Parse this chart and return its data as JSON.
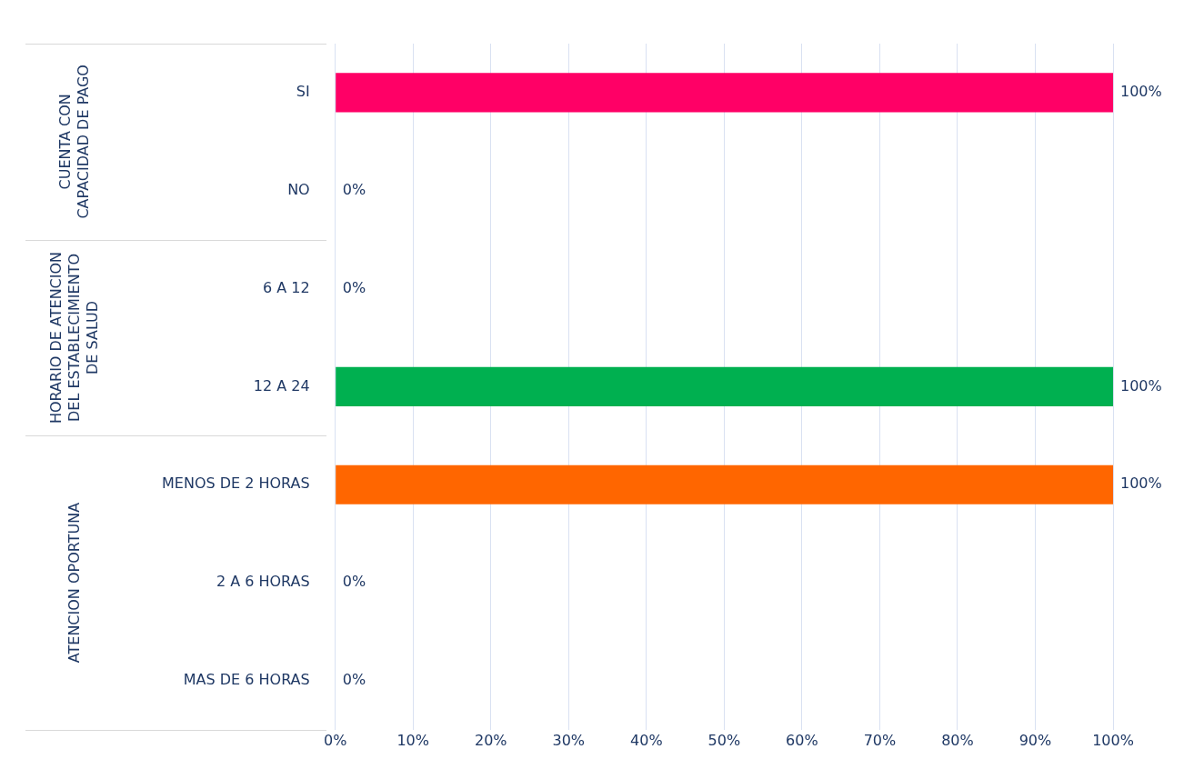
{
  "chart_data": {
    "type": "bar",
    "orientation": "horizontal",
    "categories": [
      "SI",
      "NO",
      "6 A 12",
      "12 A 24",
      "MENOS DE 2 HORAS",
      "2 A 6 HORAS",
      "MAS DE 6 HORAS"
    ],
    "values": [
      100,
      0,
      0,
      100,
      100,
      0,
      0
    ],
    "colors": [
      "#ff0066",
      "#ff0066",
      "#00b050",
      "#00b050",
      "#ff6600",
      "#ff6600",
      "#ff6600"
    ],
    "value_labels": [
      "100%",
      "0%",
      "0%",
      "100%",
      "100%",
      "0%",
      "0%"
    ],
    "xlim": [
      0,
      100
    ],
    "xticks": [
      {
        "value": 0,
        "label": "0%"
      },
      {
        "value": 10,
        "label": "10%"
      },
      {
        "value": 20,
        "label": "20%"
      },
      {
        "value": 30,
        "label": "30%"
      },
      {
        "value": 40,
        "label": "40%"
      },
      {
        "value": 50,
        "label": "50%"
      },
      {
        "value": 60,
        "label": "60%"
      },
      {
        "value": 70,
        "label": "70%"
      },
      {
        "value": 80,
        "label": "80%"
      },
      {
        "value": 90,
        "label": "90%"
      },
      {
        "value": 100,
        "label": "100%"
      }
    ],
    "annotations": [
      "CUENTA CON CAPACIDAD DE PAGO",
      "HORARIO DE ATENCION DEL ESTABLECIMIENTO DE SALUD",
      "ATENCION OPORTUNA"
    ],
    "grid": "x",
    "legend": false
  }
}
